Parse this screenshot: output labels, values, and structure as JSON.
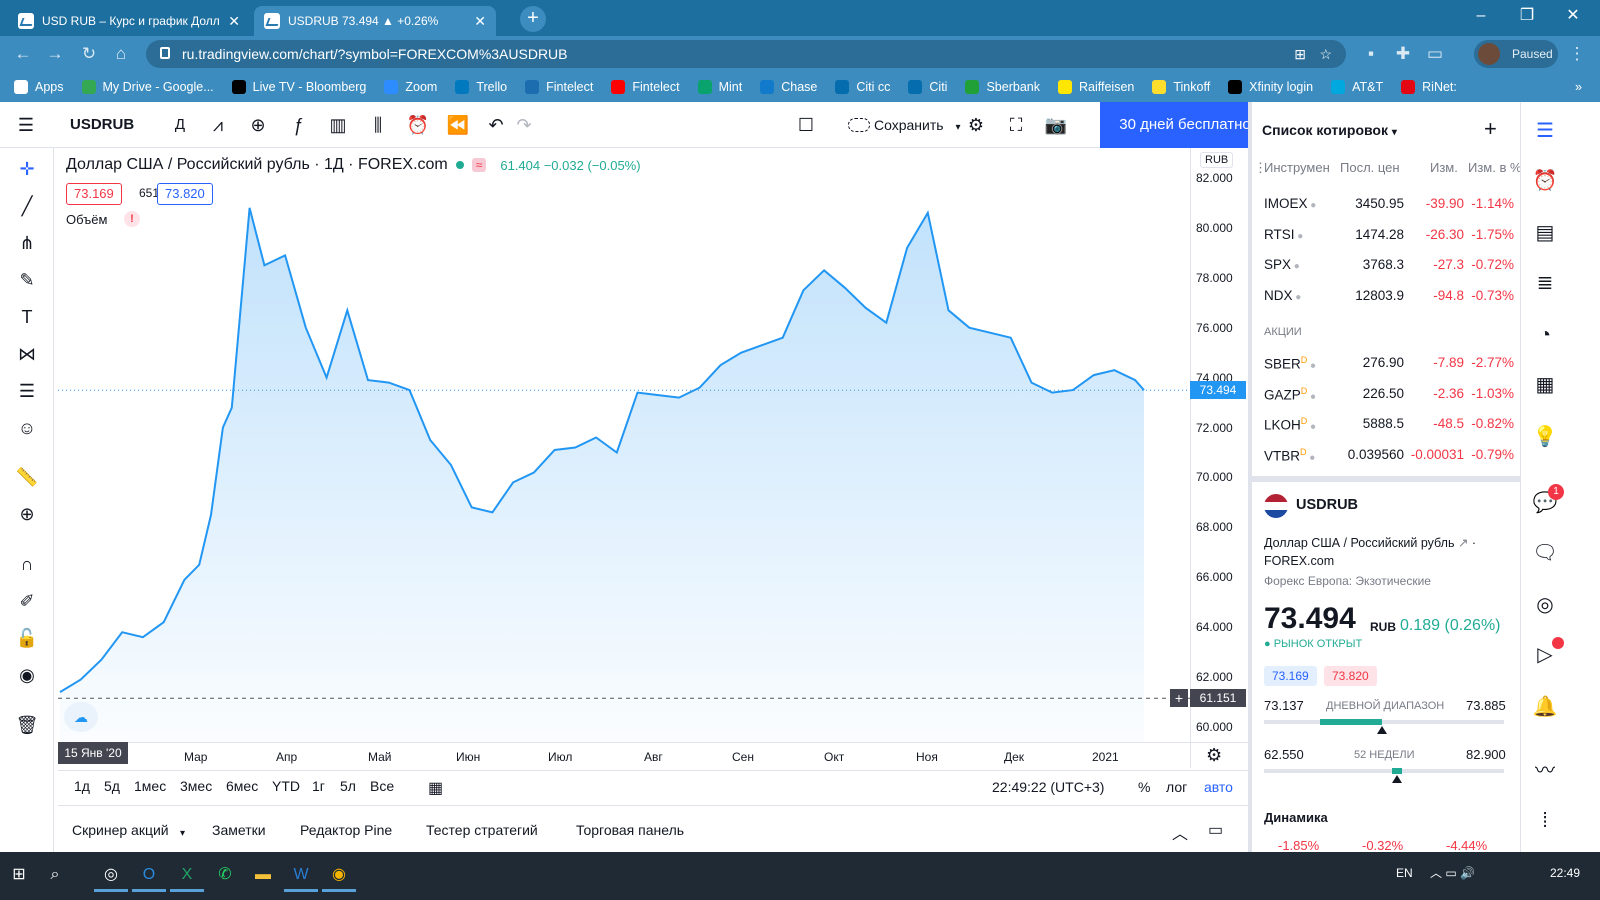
{
  "browser": {
    "tabs": [
      {
        "title": "USD RUB – Курс и график Долл",
        "active": false
      },
      {
        "title": "USDRUB 73.494 ▲ +0.26%",
        "active": true
      }
    ],
    "url": "ru.tradingview.com/chart/?symbol=FOREXCOM%3AUSDRUB",
    "profile_status": "Paused",
    "bookmarks": [
      {
        "label": "Apps",
        "color": "#ffffff"
      },
      {
        "label": "My Drive - Google...",
        "color": "#34a853"
      },
      {
        "label": "Live TV - Bloomberg",
        "color": "#000000"
      },
      {
        "label": "Zoom",
        "color": "#2d8cff"
      },
      {
        "label": "Trello",
        "color": "#0079bf"
      },
      {
        "label": "Fintelect",
        "color": "#1c6db0"
      },
      {
        "label": "Fintelect",
        "color": "#ff0000"
      },
      {
        "label": "Mint",
        "color": "#0aa36d"
      },
      {
        "label": "Chase",
        "color": "#117aca"
      },
      {
        "label": "Citi cc",
        "color": "#056dae"
      },
      {
        "label": "Citi",
        "color": "#056dae"
      },
      {
        "label": "Sberbank",
        "color": "#21a038"
      },
      {
        "label": "Raiffeisen",
        "color": "#fee600"
      },
      {
        "label": "Tinkoff",
        "color": "#ffdd2d"
      },
      {
        "label": "Xfinity login",
        "color": "#000000"
      },
      {
        "label": "AT&T",
        "color": "#00a8e0"
      },
      {
        "label": "RiNet:",
        "color": "#e30613"
      }
    ]
  },
  "toolbar": {
    "symbol": "USDRUB",
    "interval": "Д",
    "save_label": "Сохранить",
    "trial_label": "30 дней бесплатно"
  },
  "legend": {
    "title": "Доллар США / Российский рубль · 1Д · FOREX.com",
    "badge": "≈",
    "values": "61.404 −0.032 (−0.05%)",
    "bid": "73.169",
    "spread": "651",
    "ask": "73.820",
    "volume_label": "Объём",
    "volume_warning": "!"
  },
  "chart_data": {
    "type": "area",
    "title": "Доллар США / Российский рубль · 1Д · FOREX.com",
    "currency_label": "RUB",
    "x": [
      "2020-01-15",
      "2020-01-22",
      "2020-01-29",
      "2020-02-05",
      "2020-02-12",
      "2020-02-19",
      "2020-02-26",
      "2020-03-02",
      "2020-03-06",
      "2020-03-10",
      "2020-03-13",
      "2020-03-19",
      "2020-03-24",
      "2020-03-31",
      "2020-04-07",
      "2020-04-14",
      "2020-04-21",
      "2020-04-28",
      "2020-05-05",
      "2020-05-12",
      "2020-05-19",
      "2020-05-26",
      "2020-06-02",
      "2020-06-09",
      "2020-06-16",
      "2020-06-23",
      "2020-06-30",
      "2020-07-07",
      "2020-07-14",
      "2020-07-21",
      "2020-07-28",
      "2020-08-04",
      "2020-08-11",
      "2020-08-18",
      "2020-08-25",
      "2020-09-01",
      "2020-09-08",
      "2020-09-15",
      "2020-09-22",
      "2020-09-29",
      "2020-10-06",
      "2020-10-13",
      "2020-10-20",
      "2020-10-27",
      "2020-11-03",
      "2020-11-10",
      "2020-11-17",
      "2020-11-24",
      "2020-12-01",
      "2020-12-08",
      "2020-12-15",
      "2020-12-22",
      "2020-12-29",
      "2021-01-05",
      "2021-01-12",
      "2021-01-15"
    ],
    "values": [
      61.4,
      61.9,
      62.7,
      63.8,
      63.6,
      64.2,
      65.9,
      66.5,
      68.5,
      72.0,
      72.8,
      80.8,
      78.5,
      78.9,
      76.0,
      74.0,
      76.7,
      73.9,
      73.8,
      73.5,
      71.5,
      70.5,
      68.8,
      68.6,
      69.8,
      70.2,
      71.1,
      71.2,
      71.6,
      71.0,
      73.4,
      73.3,
      73.2,
      73.6,
      74.5,
      75.0,
      75.3,
      75.6,
      77.5,
      78.3,
      77.6,
      76.8,
      76.2,
      79.2,
      80.6,
      76.7,
      76.0,
      75.8,
      75.6,
      73.8,
      73.4,
      73.5,
      74.1,
      74.3,
      73.9,
      73.5
    ],
    "ylim": [
      60,
      82
    ],
    "y_ticks": [
      "82.000",
      "80.000",
      "78.000",
      "76.000",
      "74.000",
      "72.000",
      "70.000",
      "68.000",
      "66.000",
      "64.000",
      "62.000",
      "60.000"
    ],
    "x_ticks": [
      "15 Янв '20",
      "Мар",
      "Апр",
      "Май",
      "Июн",
      "Июл",
      "Авг",
      "Сен",
      "Окт",
      "Ноя",
      "Дек",
      "2021"
    ],
    "last_price_label": "73.494",
    "low_line_label": "61.151",
    "line_color": "#2196f3",
    "area_color": "#2196f3",
    "grid": false
  },
  "range_bar": {
    "ranges": [
      "1д",
      "5д",
      "1мес",
      "3мес",
      "6мес",
      "YTD",
      "1г",
      "5л",
      "Все"
    ],
    "clock": "22:49:22 (UTC+3)",
    "percent": "%",
    "log": "лог",
    "auto": "авто"
  },
  "bottom_tabs": [
    "Скринер акций",
    "Заметки",
    "Редактор Pine",
    "Тестер стратегий",
    "Торговая панель"
  ],
  "watchlist": {
    "title": "Список котировок",
    "headers": {
      "instrument": "Инструмен",
      "last": "Посл. цен",
      "chg": "Изм.",
      "chg_pct": "Изм. в %"
    },
    "indices": [
      {
        "symbol": "IMOEX",
        "last": "3450.95",
        "chg": "-39.90",
        "pct": "-1.14%"
      },
      {
        "symbol": "RTSI",
        "last": "1474.28",
        "chg": "-26.30",
        "pct": "-1.75%"
      },
      {
        "symbol": "SPX",
        "last": "3768.3",
        "chg": "-27.3",
        "pct": "-0.72%"
      },
      {
        "symbol": "NDX",
        "last": "12803.9",
        "chg": "-94.8",
        "pct": "-0.73%"
      }
    ],
    "section_label": "АКЦИИ",
    "stocks": [
      {
        "symbol": "SBER",
        "last": "276.90",
        "chg": "-7.89",
        "pct": "-2.77%"
      },
      {
        "symbol": "GAZP",
        "last": "226.50",
        "chg": "-2.36",
        "pct": "-1.03%"
      },
      {
        "symbol": "LKOH",
        "last": "5888.5",
        "chg": "-48.5",
        "pct": "-0.82%"
      },
      {
        "symbol": "VTBR",
        "last": "0.039560",
        "chg": "-0.00031",
        "pct": "-0.79%"
      }
    ],
    "suffix": "D"
  },
  "details": {
    "symbol": "USDRUB",
    "name": "Доллар США / Российский рубль",
    "exchange": "FOREX.com",
    "category": "Форекс Европа: Экзотические",
    "price": "73.494",
    "currency": "RUB",
    "change": "0.189 (0.26%)",
    "market_status": "РЫНОК ОТКРЫТ",
    "bid": "73.169",
    "ask": "73.820",
    "day_low": "73.137",
    "day_label": "ДНЕВНОЙ ДИАПАЗОН",
    "day_high": "73.885",
    "week_low": "62.550",
    "week_label": "52 НЕДЕЛИ",
    "week_high": "82.900",
    "dynamics_label": "Динамика",
    "dynamics": [
      "-1.85%",
      "-0.32%",
      "-4.44%"
    ]
  },
  "sidebar_right": {
    "notifications": "1"
  },
  "taskbar": {
    "lang": "EN",
    "time": "22:49"
  }
}
